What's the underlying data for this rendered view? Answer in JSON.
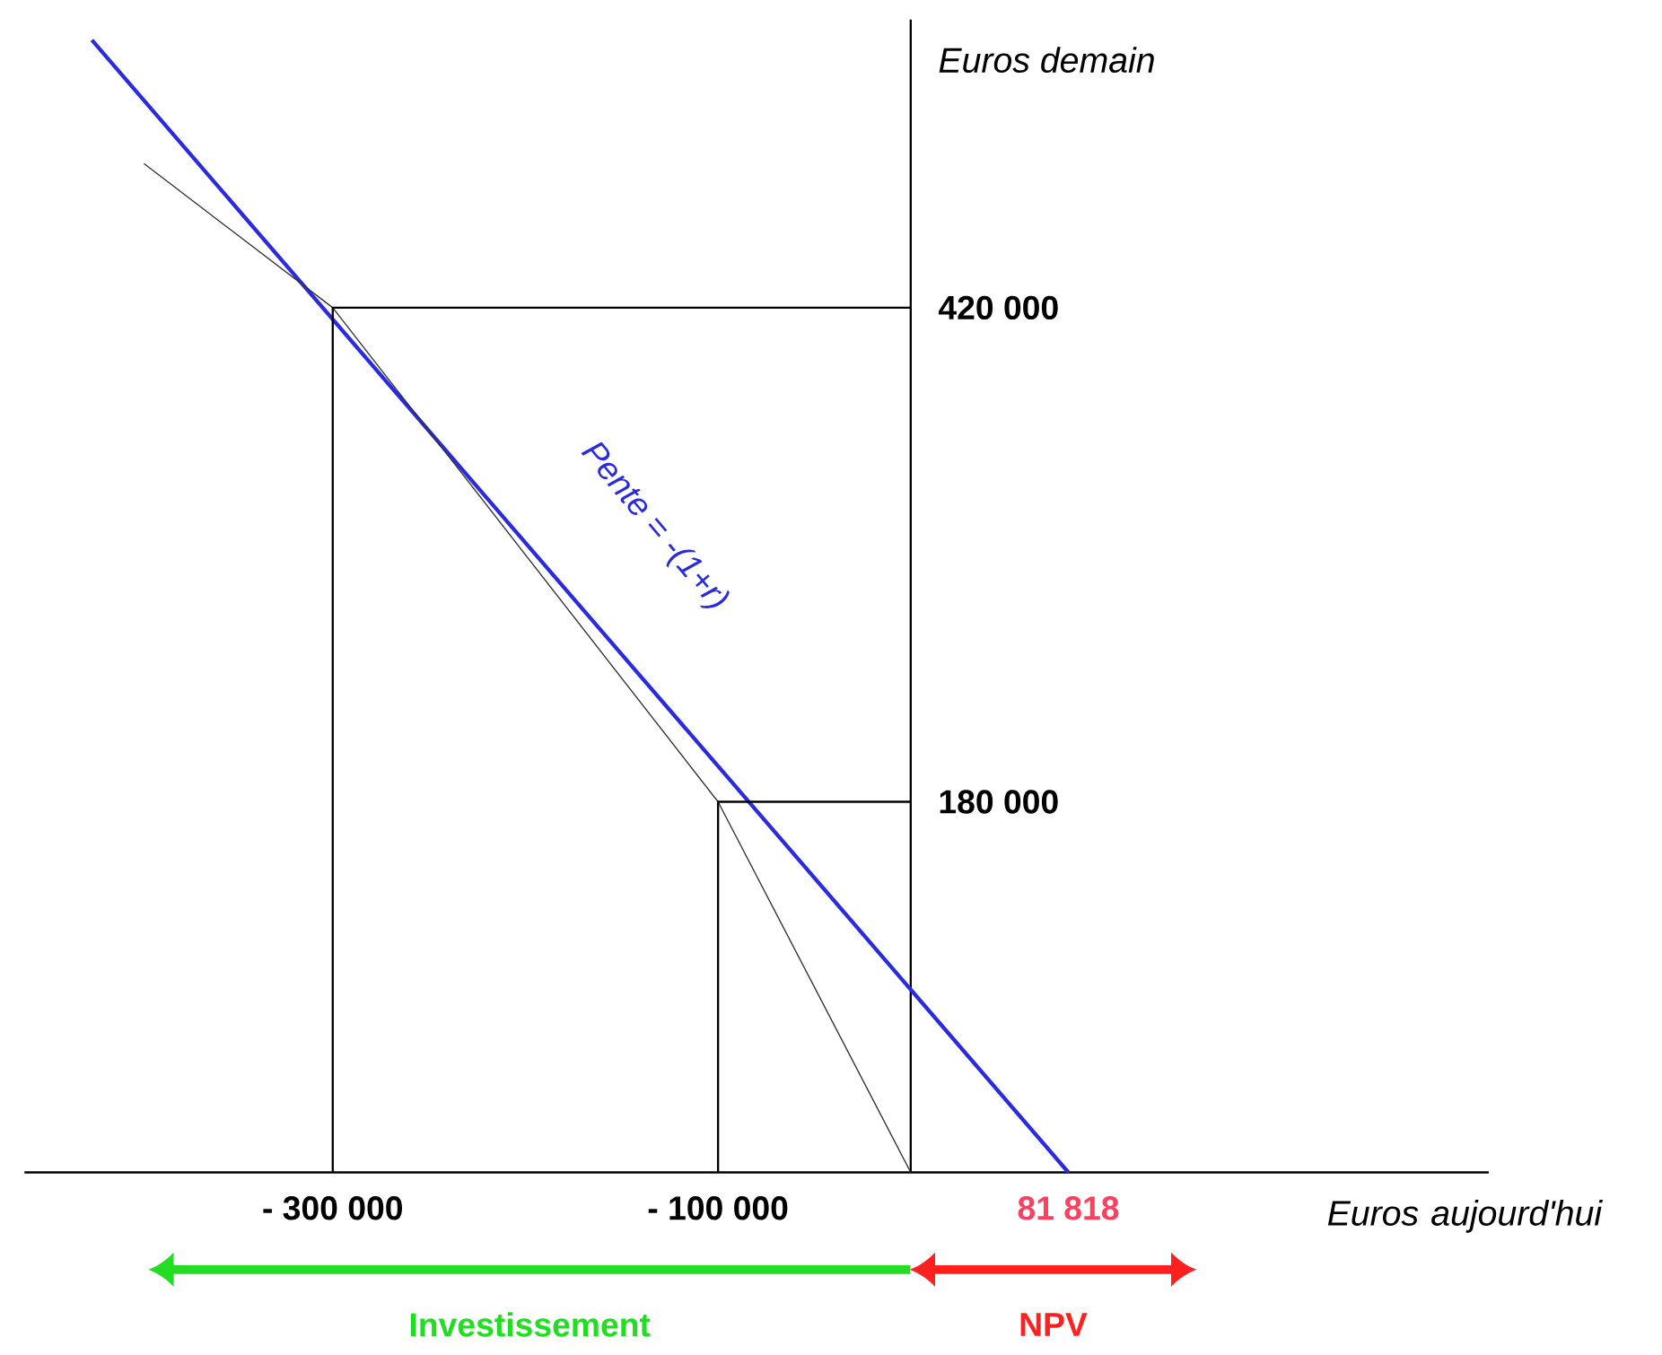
{
  "chart_data": {
    "type": "line",
    "xlabel": "Euros aujourd'hui",
    "ylabel": "Euros demain",
    "xlim": [
      -460000,
      300000
    ],
    "ylim": [
      0,
      560000
    ],
    "xticks": [
      {
        "value": -300000,
        "label": "- 300 000"
      },
      {
        "value": -100000,
        "label": "- 100 000"
      },
      {
        "value": 81818,
        "label": "81 818"
      }
    ],
    "yticks": [
      {
        "value": 180000,
        "label": "180 000"
      },
      {
        "value": 420000,
        "label": "420 000"
      }
    ],
    "series": [
      {
        "color": "#2a2ae0",
        "x": [
          -425000,
          81818
        ],
        "values": [
          550000,
          0
        ]
      },
      {
        "color": "#333333",
        "x": [
          -398000,
          -300000,
          -100000,
          0
        ],
        "values": [
          490000,
          420000,
          180000,
          0
        ]
      },
      {
        "color": "#000000",
        "x": [
          -300000,
          -300000,
          0
        ],
        "values": [
          0,
          420000,
          420000
        ]
      },
      {
        "color": "#000000",
        "x": [
          -100000,
          -100000,
          0
        ],
        "values": [
          0,
          180000,
          180000
        ]
      }
    ],
    "annotations": [
      "Pente = -(1+r)",
      "Investissement",
      "NPV"
    ],
    "grid": false
  }
}
